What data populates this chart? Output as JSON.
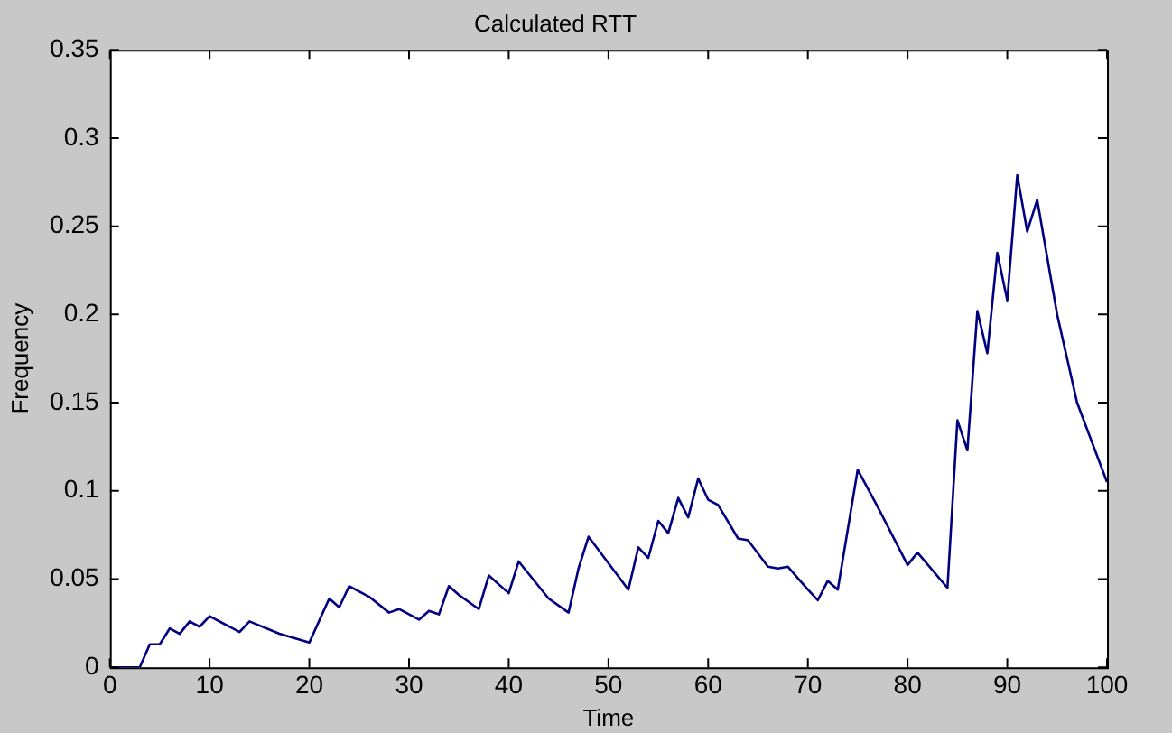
{
  "chart_data": {
    "type": "line",
    "title": "Calculated RTT",
    "xlabel": "Time",
    "ylabel": "Frequency",
    "xlim": [
      0,
      100
    ],
    "xticks": [
      0,
      10,
      20,
      30,
      40,
      50,
      60,
      70,
      80,
      90,
      100
    ],
    "ylim": [
      0,
      0.35
    ],
    "yticks": [
      0,
      0.05,
      0.1,
      0.15,
      0.2,
      0.25,
      0.3,
      0.35
    ],
    "grid": false,
    "legend": false,
    "marker": "none",
    "line_style": "solid",
    "series": [
      {
        "color": "#000080",
        "x": [
          0,
          1,
          2,
          3,
          4,
          5,
          6,
          7,
          8,
          9,
          10,
          13,
          14,
          17,
          20,
          22,
          23,
          24,
          26,
          28,
          29,
          31,
          32,
          33,
          34,
          35,
          37,
          38,
          40,
          41,
          44,
          46,
          47,
          48,
          52,
          53,
          54,
          55,
          56,
          57,
          58,
          59,
          60,
          61,
          63,
          64,
          66,
          67,
          68,
          70,
          71,
          72,
          73,
          75,
          77,
          80,
          81,
          84,
          85,
          86,
          87,
          88,
          89,
          90,
          91,
          92,
          93,
          95,
          97,
          100
        ],
        "values": [
          0,
          0,
          0,
          0,
          0.013,
          0.013,
          0.022,
          0.019,
          0.026,
          0.023,
          0.029,
          0.02,
          0.026,
          0.019,
          0.014,
          0.039,
          0.034,
          0.046,
          0.04,
          0.031,
          0.033,
          0.027,
          0.032,
          0.03,
          0.046,
          0.041,
          0.033,
          0.052,
          0.042,
          0.06,
          0.039,
          0.031,
          0.056,
          0.074,
          0.044,
          0.068,
          0.062,
          0.083,
          0.076,
          0.096,
          0.085,
          0.107,
          0.095,
          0.092,
          0.073,
          0.072,
          0.057,
          0.056,
          0.057,
          0.044,
          0.038,
          0.049,
          0.044,
          0.112,
          0.091,
          0.058,
          0.065,
          0.045,
          0.14,
          0.123,
          0.202,
          0.178,
          0.235,
          0.208,
          0.279,
          0.247,
          0.265,
          0.2,
          0.15,
          0.105
        ]
      }
    ]
  }
}
